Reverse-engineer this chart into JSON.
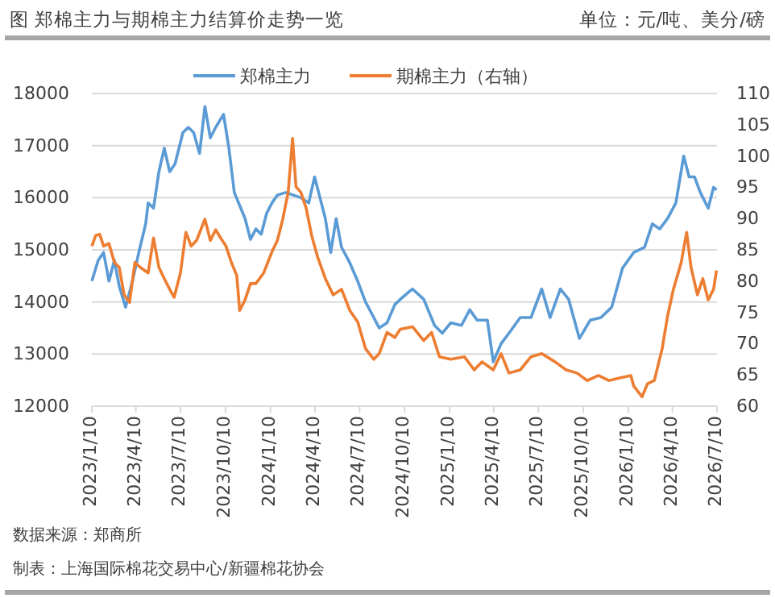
{
  "chart_data": {
    "type": "line",
    "title": "图 郑棉主力与期棉主力结算价走势一览",
    "annotations": [
      "单位：元/吨、美分/磅",
      "数据来源：郑商所",
      "制表：上海国际棉花交易中心/新疆棉花协会"
    ],
    "xlim": [
      "2023-01-10",
      "2026-07-10"
    ],
    "xticks": [
      {
        "value": "2023-01-10",
        "label": "2023/1/10"
      },
      {
        "value": "2023-04-10",
        "label": "2023/4/10"
      },
      {
        "value": "2023-07-10",
        "label": "2023/7/10"
      },
      {
        "value": "2023-10-10",
        "label": "2023/10/10"
      },
      {
        "value": "2024-01-10",
        "label": "2024/1/10"
      },
      {
        "value": "2024-04-10",
        "label": "2024/4/10"
      },
      {
        "value": "2024-07-10",
        "label": "2024/7/10"
      },
      {
        "value": "2024-10-10",
        "label": "2024/10/10"
      },
      {
        "value": "2025-01-10",
        "label": "2025/1/10"
      },
      {
        "value": "2025-04-10",
        "label": "2025/4/10"
      },
      {
        "value": "2025-07-10",
        "label": "2025/7/10"
      },
      {
        "value": "2025-10-10",
        "label": "2025/10/10"
      },
      {
        "value": "2026-01-10",
        "label": "2026/1/10"
      },
      {
        "value": "2026-04-10",
        "label": "2026/4/10"
      },
      {
        "value": "2026-07-10",
        "label": "2026/7/10"
      }
    ],
    "ylim": [
      12000,
      18000
    ],
    "yticks": [
      12000,
      13000,
      14000,
      15000,
      16000,
      17000,
      18000
    ],
    "y2lim": [
      60,
      110
    ],
    "y2ticks": [
      60,
      65,
      70,
      75,
      80,
      85,
      90,
      95,
      100,
      105,
      110
    ],
    "grid": "y",
    "legend": "top",
    "line_style": "solid",
    "marker": "none",
    "series": [
      {
        "name": "郑棉主力",
        "color": "#5b9bd5",
        "x": [
          "2023-01-10",
          "2023-01-23",
          "2023-02-03",
          "2023-02-14",
          "2023-02-25",
          "2023-03-07",
          "2023-03-20",
          "2023-04-03",
          "2023-04-16",
          "2023-04-30",
          "2023-05-05",
          "2023-05-16",
          "2023-05-27",
          "2023-06-07",
          "2023-06-18",
          "2023-06-29",
          "2023-07-15",
          "2023-07-26",
          "2023-08-06",
          "2023-08-18",
          "2023-08-29",
          "2023-09-09",
          "2023-09-20",
          "2023-10-06",
          "2023-10-17",
          "2023-10-28",
          "2023-11-08",
          "2023-11-19",
          "2023-11-30",
          "2023-12-11",
          "2023-12-22",
          "2024-01-02",
          "2024-01-13",
          "2024-01-24",
          "2024-02-10",
          "2024-02-26",
          "2024-03-12",
          "2024-03-28",
          "2024-04-09",
          "2024-04-20",
          "2024-05-01",
          "2024-05-12",
          "2024-05-23",
          "2024-06-03",
          "2024-06-20",
          "2024-07-06",
          "2024-07-22",
          "2024-08-08",
          "2024-08-19",
          "2024-09-04",
          "2024-09-20",
          "2024-10-01",
          "2024-10-26",
          "2024-11-18",
          "2024-12-10",
          "2024-12-26",
          "2025-01-12",
          "2025-02-03",
          "2025-02-20",
          "2025-03-07",
          "2025-03-28",
          "2025-04-09",
          "2025-04-25",
          "2025-05-11",
          "2025-06-03",
          "2025-06-25",
          "2025-07-17",
          "2025-08-03",
          "2025-08-24",
          "2025-09-10",
          "2025-10-02",
          "2025-10-24",
          "2025-11-15",
          "2025-12-07",
          "2025-12-29",
          "2026-01-21",
          "2026-02-12",
          "2026-02-28",
          "2026-03-15",
          "2026-03-31",
          "2026-04-17",
          "2026-05-03",
          "2026-05-14",
          "2026-05-25",
          "2026-06-06",
          "2026-06-22",
          "2026-07-03",
          "2026-07-09"
        ],
        "values": [
          14400,
          14800,
          14950,
          14400,
          14800,
          14300,
          13900,
          14400,
          14950,
          15500,
          15900,
          15800,
          16500,
          16950,
          16500,
          16650,
          17250,
          17350,
          17250,
          16850,
          17750,
          17150,
          17350,
          17600,
          16950,
          16100,
          15850,
          15600,
          15200,
          15400,
          15300,
          15700,
          15900,
          16050,
          16100,
          16050,
          16000,
          15900,
          16400,
          16000,
          15600,
          14950,
          15600,
          15050,
          14750,
          14400,
          14000,
          13700,
          13500,
          13600,
          13950,
          14050,
          14250,
          14050,
          13550,
          13400,
          13600,
          13550,
          13850,
          13650,
          13650,
          12850,
          13200,
          13400,
          13700,
          13700,
          14250,
          13700,
          14250,
          14050,
          13300,
          13650,
          13700,
          13900,
          14650,
          14950,
          15050,
          15500,
          15400,
          15600,
          15900,
          16800,
          16400,
          16400,
          16100,
          15800,
          16200,
          16150
        ]
      },
      {
        "name": "期棉主力（右轴）",
        "color": "#ed7d31",
        "axis": "y2",
        "x": [
          "2023-01-10",
          "2023-01-18",
          "2023-01-26",
          "2023-02-03",
          "2023-02-14",
          "2023-02-25",
          "2023-03-07",
          "2023-03-17",
          "2023-03-28",
          "2023-04-08",
          "2023-04-19",
          "2023-05-05",
          "2023-05-16",
          "2023-05-27",
          "2023-06-07",
          "2023-06-18",
          "2023-06-27",
          "2023-07-10",
          "2023-07-21",
          "2023-08-01",
          "2023-08-12",
          "2023-08-29",
          "2023-09-09",
          "2023-09-20",
          "2023-09-30",
          "2023-10-11",
          "2023-10-22",
          "2023-11-02",
          "2023-11-08",
          "2023-11-19",
          "2023-11-30",
          "2023-12-11",
          "2023-12-27",
          "2024-01-13",
          "2024-01-24",
          "2024-02-04",
          "2024-02-15",
          "2024-02-24",
          "2024-03-02",
          "2024-03-12",
          "2024-03-23",
          "2024-04-03",
          "2024-04-15",
          "2024-05-01",
          "2024-05-17",
          "2024-06-03",
          "2024-06-20",
          "2024-07-06",
          "2024-07-22",
          "2024-08-08",
          "2024-08-19",
          "2024-09-04",
          "2024-09-20",
          "2024-10-01",
          "2024-10-26",
          "2024-11-18",
          "2024-12-04",
          "2024-12-20",
          "2025-01-12",
          "2025-02-09",
          "2025-03-01",
          "2025-03-17",
          "2025-04-09",
          "2025-04-25",
          "2025-05-11",
          "2025-06-03",
          "2025-06-25",
          "2025-07-17",
          "2025-08-13",
          "2025-09-05",
          "2025-09-27",
          "2025-10-18",
          "2025-11-10",
          "2025-12-01",
          "2025-12-23",
          "2026-01-15",
          "2026-01-21",
          "2026-02-07",
          "2026-02-18",
          "2026-03-04",
          "2026-03-20",
          "2026-03-31",
          "2026-04-12",
          "2026-04-28",
          "2026-05-09",
          "2026-05-18",
          "2026-05-31",
          "2026-06-11",
          "2026-06-22",
          "2026-07-03",
          "2026-07-09"
        ],
        "values": [
          85.6,
          87.3,
          87.5,
          85.6,
          86.0,
          83.0,
          82.2,
          77.8,
          76.6,
          83.0,
          82.2,
          81.3,
          86.9,
          82.2,
          80.4,
          78.7,
          77.4,
          81.3,
          87.8,
          85.6,
          86.5,
          89.9,
          86.5,
          88.2,
          86.9,
          85.6,
          83.0,
          80.9,
          75.3,
          77.0,
          79.6,
          79.6,
          81.3,
          84.7,
          86.5,
          89.9,
          94.2,
          102.8,
          95.1,
          94.2,
          91.6,
          87.3,
          83.9,
          80.4,
          77.8,
          78.7,
          75.3,
          73.5,
          69.2,
          67.5,
          68.4,
          71.8,
          71.0,
          72.3,
          72.7,
          70.5,
          71.8,
          67.9,
          67.5,
          67.9,
          65.8,
          67.1,
          65.8,
          68.4,
          65.3,
          65.8,
          67.9,
          68.4,
          67.1,
          65.8,
          65.3,
          64.1,
          64.9,
          64.1,
          64.5,
          64.9,
          63.2,
          61.5,
          63.6,
          64.1,
          69.2,
          74.4,
          78.7,
          83.0,
          87.8,
          82.2,
          77.8,
          80.4,
          77.0,
          78.7,
          81.7
        ]
      }
    ]
  }
}
